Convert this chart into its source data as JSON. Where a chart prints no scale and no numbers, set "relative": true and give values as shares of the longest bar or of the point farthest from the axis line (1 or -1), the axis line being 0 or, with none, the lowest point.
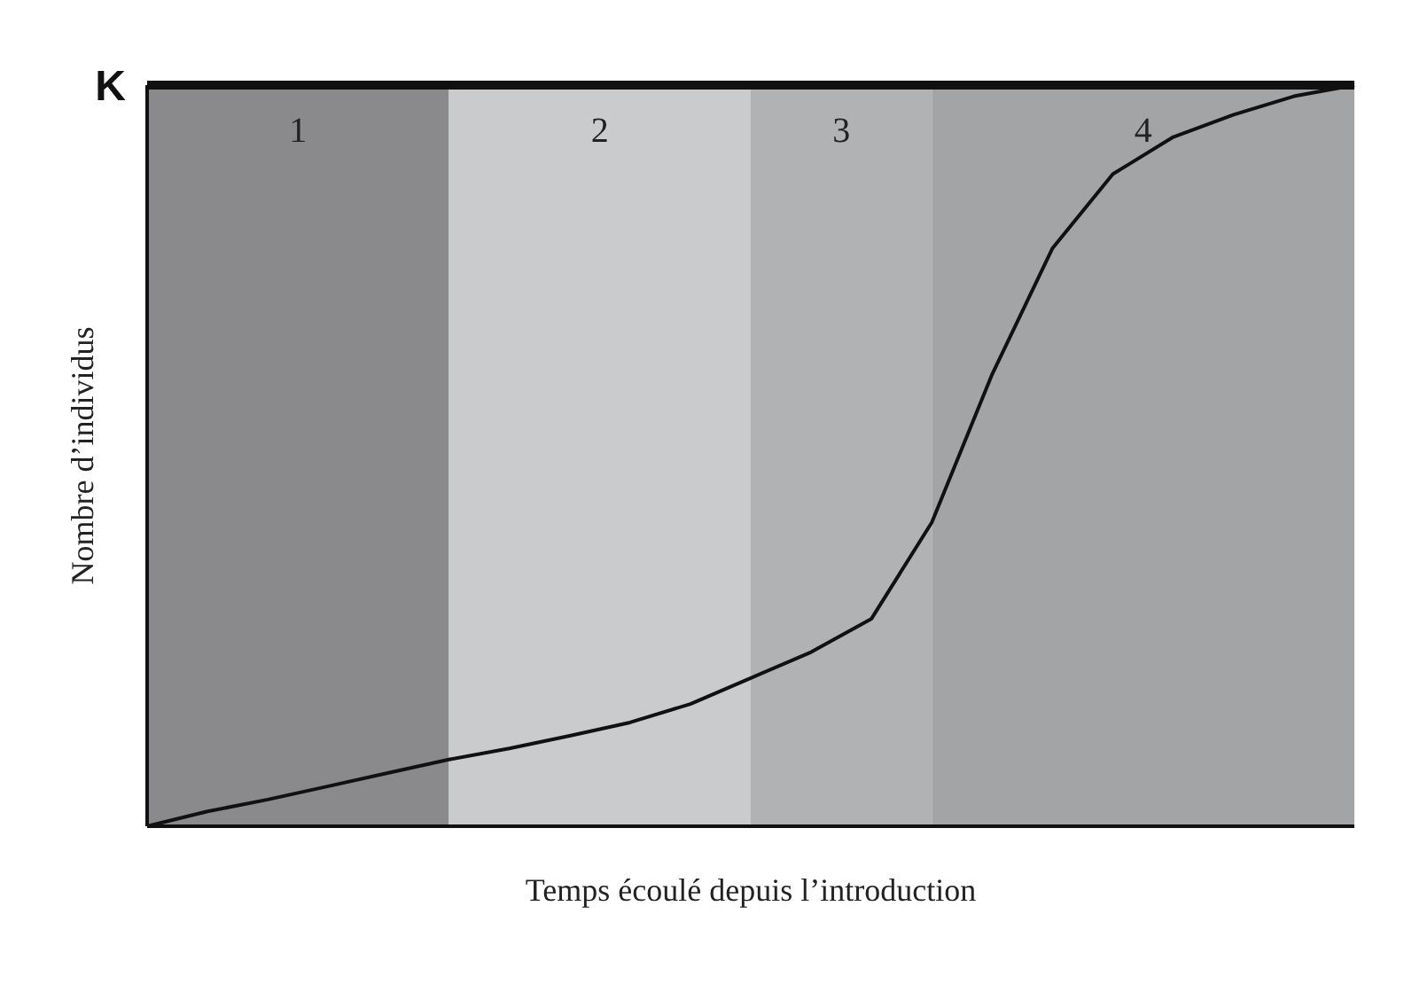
{
  "chart_data": {
    "type": "line",
    "xlabel": "Temps écoulé depuis l’introduction",
    "ylabel": "Nombre d’individus",
    "relative": true,
    "marker": "none",
    "line_style": "solid",
    "categories": [
      null,
      null,
      null,
      null,
      null,
      null,
      null,
      null,
      null,
      null,
      null,
      null,
      null,
      null,
      null,
      null,
      null,
      null,
      null,
      null,
      null
    ],
    "series": [
      {
        "color": "#111111",
        "values": [
          0,
          0.02,
          0.036,
          0.054,
          0.072,
          0.09,
          0.105,
          0.122,
          0.14,
          0.165,
          0.2,
          0.235,
          0.28,
          0.41,
          0.61,
          0.78,
          0.88,
          0.93,
          0.96,
          0.985,
          1
        ]
      }
    ],
    "annotations": [
      "1",
      "2",
      "3",
      "4"
    ],
    "ref_lines": [
      {
        "axis": "y",
        "value": 1,
        "label": "K",
        "color": "#111111"
      }
    ]
  }
}
